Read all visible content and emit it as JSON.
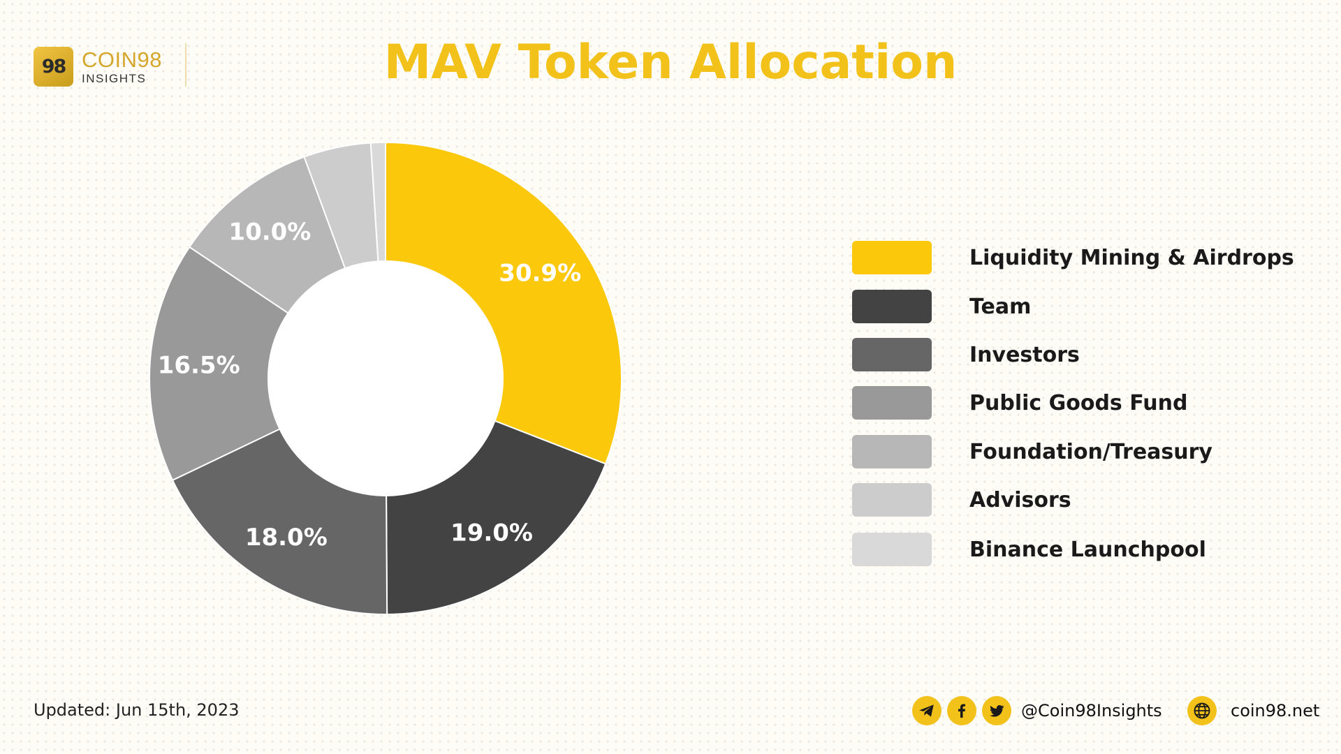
{
  "brand": {
    "mark": "98",
    "name": "COIN98",
    "sub": "INSIGHTS",
    "accent": "#f2c21b"
  },
  "chart_data": {
    "type": "pie",
    "style": "donut",
    "title": "MAV Token Allocation",
    "categories": [
      "Liquidity Mining & Airdrops",
      "Team",
      "Investors",
      "Public Goods Fund",
      "Foundation/Treasury",
      "Advisors",
      "Binance Launchpool"
    ],
    "values": [
      30.9,
      19.0,
      18.0,
      16.5,
      10.0,
      4.6,
      1.0
    ],
    "data_labels": [
      "30.9%",
      "19.0%",
      "18.0%",
      "16.5%",
      "10.0%",
      "",
      ""
    ],
    "colors": [
      "#fcc80b",
      "#434343",
      "#666666",
      "#999999",
      "#b7b7b7",
      "#cccccc",
      "#d9d9d9"
    ],
    "legend_position": "right"
  },
  "footer": {
    "updated": "Updated: Jun 15th, 2023",
    "social_icons": [
      "telegram-icon",
      "facebook-icon",
      "twitter-icon"
    ],
    "handle": "@Coin98Insights",
    "site_icon": "globe-icon",
    "site": "coin98.net"
  }
}
